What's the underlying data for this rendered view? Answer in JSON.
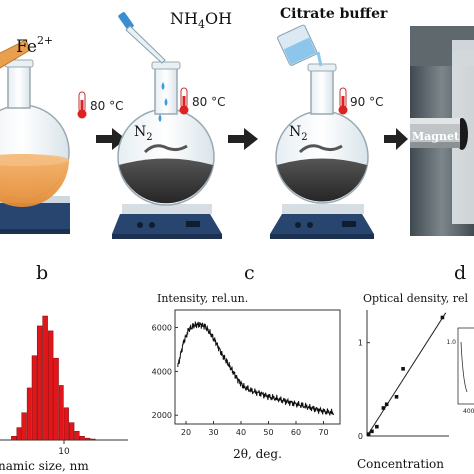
{
  "scheme": {
    "reagent_1": "Fe",
    "reagent_1_charge": "2+",
    "reagent_2": "NH",
    "reagent_2_sub": "4",
    "reagent_2_tail": "OH",
    "reagent_3": "Citrate buffer",
    "temp_1": "80 °C",
    "temp_2": "80 °C",
    "temp_3": "90 °C",
    "gas_1": "N",
    "gas_1_sub": "2",
    "gas_2": "N",
    "gas_2_sub": "2",
    "magnet_label": "Magnet",
    "colors": {
      "orange_liquid": "#f0a24e",
      "dark_liquid": "#3a3a3a",
      "hotplate_blue": "#27456e",
      "arrow": "#222222"
    }
  },
  "panels": {
    "b": "b",
    "c": "c",
    "d": "d"
  },
  "chart_data": [
    {
      "panel": "b",
      "type": "bar",
      "xlabel": "namic size, nm",
      "x_tick_label": "10",
      "x_scale": "log",
      "bar_color": "#e0161b",
      "categories": [
        3.2,
        3.6,
        4.0,
        4.5,
        5.0,
        5.6,
        6.3,
        7.1,
        8.0,
        9.0,
        10.0,
        11.2,
        12.6,
        14.1,
        15.8,
        17.8
      ],
      "values": [
        3,
        10,
        22,
        42,
        68,
        92,
        100,
        88,
        66,
        44,
        26,
        14,
        7,
        3,
        1.5,
        0.8
      ]
    },
    {
      "panel": "c",
      "type": "line",
      "title": "Intensity, rel.un.",
      "xlabel": "2θ, deg.",
      "xlim": [
        16,
        76
      ],
      "ylim": [
        1600,
        6800
      ],
      "x_ticks": [
        "20",
        "30",
        "40",
        "50",
        "60",
        "70"
      ],
      "y_ticks": [
        "2000",
        "4000",
        "6000"
      ],
      "series": [
        {
          "x": [
            17,
            19,
            21,
            23,
            25,
            27,
            29,
            31,
            33,
            35,
            37,
            39,
            41,
            44,
            47,
            50,
            53,
            56,
            59,
            62,
            65,
            68,
            71,
            74
          ],
          "y": [
            4200,
            5300,
            5900,
            6100,
            6150,
            6050,
            5700,
            5300,
            4800,
            4400,
            4000,
            3600,
            3300,
            3100,
            3000,
            2850,
            2750,
            2650,
            2550,
            2450,
            2350,
            2250,
            2150,
            2100
          ]
        }
      ]
    },
    {
      "panel": "d",
      "type": "scatter",
      "title": "Optical density, rel",
      "xlabel": "Concentration",
      "ylim": [
        0,
        1.35
      ],
      "y_ticks": [
        "0",
        "1"
      ],
      "points": {
        "x": [
          0.5,
          1.5,
          3,
          5,
          6,
          9,
          11,
          23
        ],
        "y": [
          0.02,
          0.05,
          0.1,
          0.3,
          0.34,
          0.42,
          0.72,
          1.27
        ]
      },
      "fit": {
        "x": [
          0,
          24
        ],
        "y": [
          0,
          1.32
        ]
      },
      "inset_tick_1": "1.0",
      "inset_tick_2": "400"
    }
  ]
}
